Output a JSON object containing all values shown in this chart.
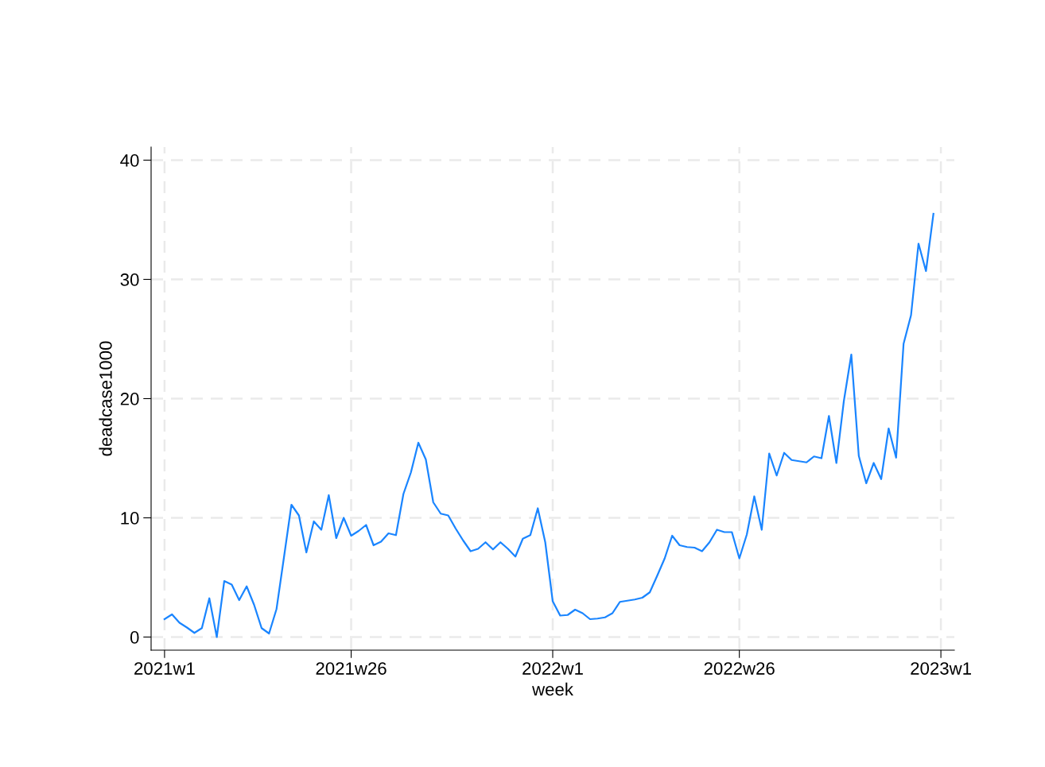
{
  "chart_data": {
    "type": "line",
    "xlabel": "week",
    "ylabel": "deadcase1000",
    "categories": [
      "2021w1",
      null,
      null,
      null,
      null,
      null,
      null,
      null,
      null,
      null,
      null,
      null,
      null,
      null,
      null,
      null,
      null,
      null,
      null,
      null,
      null,
      null,
      null,
      null,
      null,
      "2021w26",
      null,
      null,
      null,
      null,
      null,
      null,
      null,
      null,
      null,
      null,
      null,
      null,
      null,
      null,
      null,
      null,
      null,
      null,
      null,
      null,
      null,
      null,
      null,
      null,
      null,
      null,
      "2022w1",
      null,
      null,
      null,
      null,
      null,
      null,
      null,
      null,
      null,
      null,
      null,
      null,
      null,
      null,
      null,
      null,
      null,
      null,
      null,
      null,
      null,
      null,
      null,
      null,
      "2022w26",
      null,
      null,
      null,
      null,
      null,
      null,
      null,
      null,
      null,
      null,
      null,
      null,
      null,
      null,
      null,
      null,
      null,
      null,
      null,
      null,
      null,
      null,
      null,
      null,
      null,
      null,
      "2023w1"
    ],
    "series": [
      {
        "color": "#1a85ff",
        "values": [
          1.5,
          1.9,
          1.2,
          0.8,
          0.35,
          0.75,
          3.25,
          0.0,
          4.7,
          4.4,
          3.1,
          4.25,
          2.7,
          0.75,
          0.3,
          2.35,
          6.7,
          11.1,
          10.2,
          7.1,
          9.7,
          9.0,
          11.9,
          8.3,
          10.0,
          8.5,
          8.9,
          9.4,
          7.7,
          8.0,
          8.7,
          8.55,
          12.0,
          13.8,
          16.3,
          14.9,
          11.3,
          10.35,
          10.2,
          9.1,
          8.1,
          7.2,
          7.4,
          7.95,
          7.35,
          7.95,
          7.4,
          6.75,
          8.25,
          8.55,
          10.8,
          7.95,
          3.0,
          1.8,
          1.85,
          2.3,
          2.0,
          1.5,
          1.55,
          1.65,
          2.0,
          2.95,
          3.05,
          3.15,
          3.3,
          3.75,
          5.15,
          6.6,
          8.5,
          7.7,
          7.55,
          7.5,
          7.2,
          7.95,
          9.0,
          8.8,
          8.8,
          6.6,
          8.6,
          11.8,
          9.0,
          15.4,
          13.55,
          15.45,
          14.85,
          14.75,
          14.65,
          15.15,
          15.0,
          18.55,
          14.6,
          19.8,
          23.7,
          15.2,
          12.9,
          14.6,
          13.25,
          17.5,
          15.05,
          24.6,
          27.0,
          33.0,
          30.7,
          35.5,
          null
        ]
      }
    ],
    "ylim": [
      -1.1,
      41.1
    ],
    "yticks": [
      0,
      10,
      20,
      30,
      40
    ],
    "grid": true,
    "marker": "none",
    "line_style": "solid"
  }
}
